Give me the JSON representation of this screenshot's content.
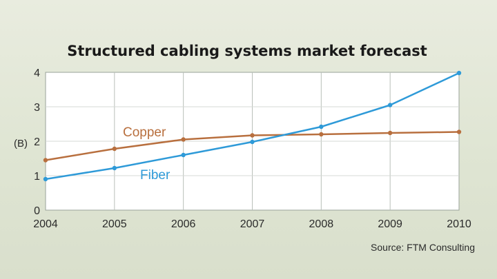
{
  "chart_data": {
    "type": "line",
    "title": "Structured cabling systems market forecast",
    "ylabel": "(B)",
    "source": "Source: FTM Consulting",
    "x": [
      "2004",
      "2005",
      "2006",
      "2007",
      "2008",
      "2009",
      "2010"
    ],
    "yticks": [
      "0",
      "1",
      "2",
      "3",
      "4"
    ],
    "ylim": [
      0,
      4
    ],
    "grid": true,
    "series": [
      {
        "name": "Copper",
        "color": "#b86f3e",
        "values": [
          1.45,
          1.78,
          2.05,
          2.17,
          2.2,
          2.24,
          2.27
        ]
      },
      {
        "name": "Fiber",
        "color": "#2e9ad8",
        "values": [
          0.9,
          1.22,
          1.6,
          1.98,
          2.42,
          3.05,
          3.98
        ]
      }
    ]
  }
}
